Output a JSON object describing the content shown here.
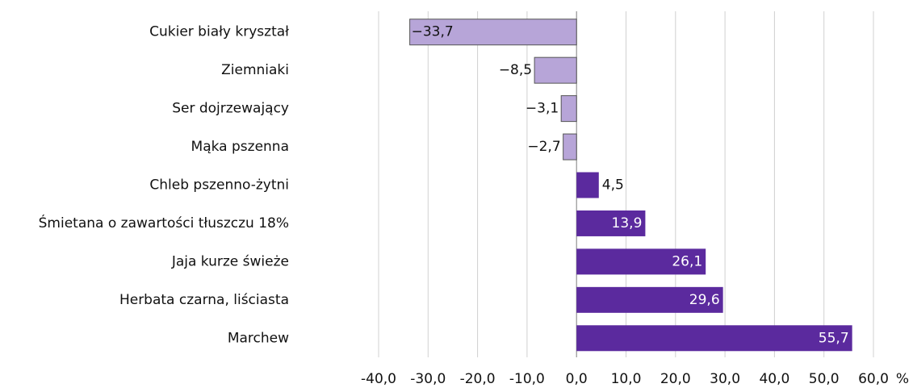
{
  "chart_data": {
    "type": "hbar",
    "categories": [
      "Cukier biały kryształ",
      "Ziemniaki",
      "Ser dojrzewający",
      "Mąka pszenna",
      "Chleb pszenno-żytni",
      "Śmietana o zawartości tłuszczu 18%",
      "Jaja kurze świeże",
      "Herbata czarna, liściasta",
      "Marchew"
    ],
    "values": [
      -33.7,
      -8.5,
      -3.1,
      -2.7,
      4.5,
      13.9,
      26.1,
      29.6,
      55.7
    ],
    "value_labels": [
      "−33,7",
      "−8,5",
      "−3,1",
      "−2,7",
      "4,5",
      "13,9",
      "26,1",
      "29,6",
      "55,7"
    ],
    "color": "#5b2a9e",
    "negative_color": "#b7a5d8",
    "xlim": [
      -40,
      60
    ],
    "xticks": [
      {
        "value": -40,
        "label": "-40,0"
      },
      {
        "value": -30,
        "label": "-30,0"
      },
      {
        "value": -20,
        "label": "-20,0"
      },
      {
        "value": -10,
        "label": "-10,0"
      },
      {
        "value": 0,
        "label": "0,0"
      },
      {
        "value": 10,
        "label": "10,0"
      },
      {
        "value": 20,
        "label": "20,0"
      },
      {
        "value": 30,
        "label": "30,0"
      },
      {
        "value": 40,
        "label": "40,0"
      },
      {
        "value": 50,
        "label": "50,0"
      },
      {
        "value": 60,
        "label": "60,0"
      }
    ],
    "xlabel": "%",
    "grid": true
  }
}
